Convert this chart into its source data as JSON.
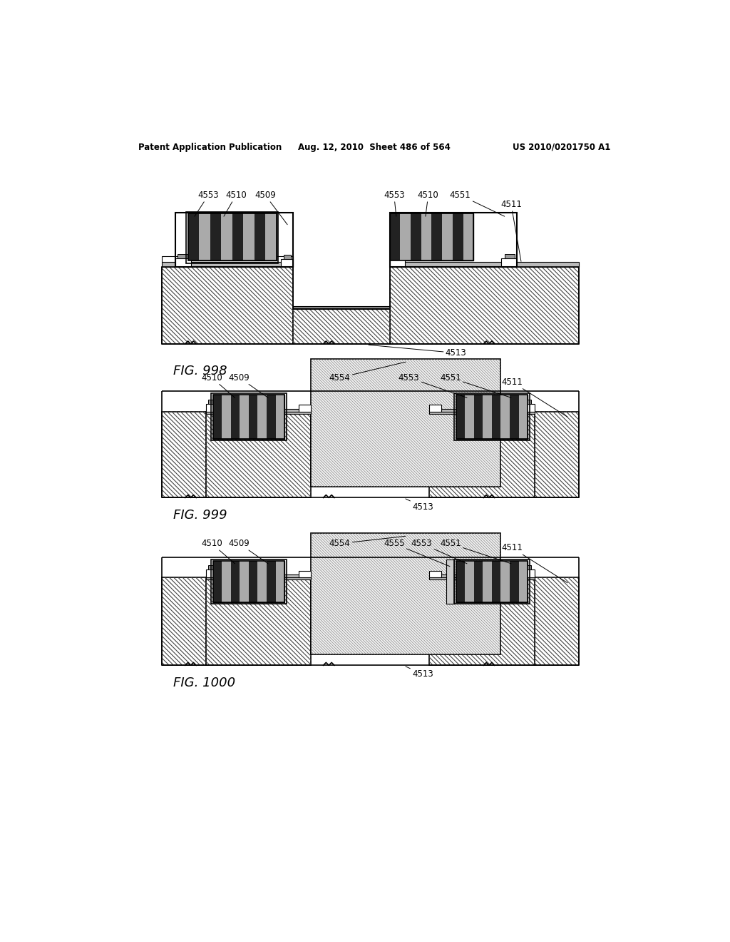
{
  "header_left": "Patent Application Publication",
  "header_middle": "Aug. 12, 2010  Sheet 486 of 564",
  "header_right": "US 2010/0201750 A1",
  "bg_color": "#ffffff"
}
